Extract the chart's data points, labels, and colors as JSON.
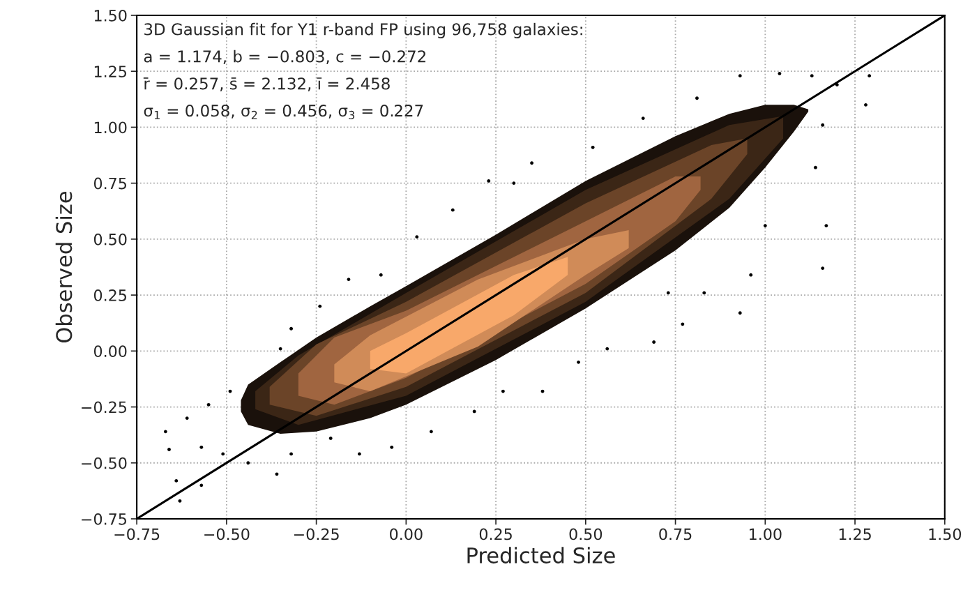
{
  "chart_data": {
    "type": "scatter",
    "xlabel": "Predicted Size",
    "ylabel": "Observed Size",
    "xlim": [
      -0.75,
      1.5
    ],
    "ylim": [
      -0.75,
      1.5
    ],
    "xticks": [
      {
        "value": -0.75,
        "label": "−0.75"
      },
      {
        "value": -0.5,
        "label": "−0.50"
      },
      {
        "value": -0.25,
        "label": "−0.25"
      },
      {
        "value": 0,
        "label": "0.00"
      },
      {
        "value": 0.25,
        "label": "0.25"
      },
      {
        "value": 0.5,
        "label": "0.50"
      },
      {
        "value": 0.75,
        "label": "0.75"
      },
      {
        "value": 1.0,
        "label": "1.00"
      },
      {
        "value": 1.25,
        "label": "1.25"
      },
      {
        "value": 1.5,
        "label": "1.50"
      }
    ],
    "yticks": [
      {
        "value": -0.75,
        "label": "−0.75"
      },
      {
        "value": -0.5,
        "label": "−0.50"
      },
      {
        "value": -0.25,
        "label": "−0.25"
      },
      {
        "value": 0,
        "label": "0.00"
      },
      {
        "value": 0.25,
        "label": "0.25"
      },
      {
        "value": 0.5,
        "label": "0.50"
      },
      {
        "value": 0.75,
        "label": "0.75"
      },
      {
        "value": 1.0,
        "label": "1.00"
      },
      {
        "value": 1.25,
        "label": "1.25"
      },
      {
        "value": 1.5,
        "label": "1.50"
      }
    ],
    "grid": true,
    "legend": false,
    "annotations": [
      "3D Gaussian fit for Y1 r-band FP using 96,758 galaxies:",
      "a = 1.174, b = −0.803, c = −0.272",
      "r̄ = 0.257, s̄ = 2.132, ī = 2.458",
      "σ$_{1}$ = 0.058, σ$_{2}$ = 0.456, σ$_{3}$ = 0.227"
    ],
    "series": [
      {
        "color": "#000000",
        "marker": "circle",
        "x": [
          -0.67,
          -0.64,
          -0.63,
          -0.57,
          -0.51,
          -0.55,
          -0.49,
          -0.35,
          -0.32,
          -0.24,
          -0.16,
          -0.07,
          0.03,
          0.13,
          0.23,
          0.3,
          0.35,
          0.52,
          0.66,
          0.81,
          0.93,
          1.04,
          1.13,
          1.2,
          1.29,
          1.28,
          1.16,
          1.14,
          1.17,
          1.16,
          1.0,
          0.96,
          0.93,
          0.83,
          0.77,
          0.73,
          0.69,
          0.56,
          0.48,
          0.38,
          0.27,
          0.19,
          0.07,
          -0.04,
          -0.13,
          -0.21,
          -0.32,
          -0.36,
          -0.44,
          -0.57,
          -0.61,
          -0.66
        ],
        "values": [
          -0.36,
          -0.58,
          -0.67,
          -0.6,
          -0.46,
          -0.24,
          -0.18,
          0.01,
          0.1,
          0.2,
          0.32,
          0.34,
          0.51,
          0.63,
          0.76,
          0.75,
          0.84,
          0.91,
          1.04,
          1.13,
          1.23,
          1.24,
          1.23,
          1.19,
          1.23,
          1.1,
          1.01,
          0.82,
          0.56,
          0.37,
          0.56,
          0.34,
          0.17,
          0.26,
          0.12,
          0.26,
          0.04,
          0.01,
          -0.05,
          -0.18,
          -0.18,
          -0.27,
          -0.36,
          -0.43,
          -0.46,
          -0.39,
          -0.46,
          -0.55,
          -0.5,
          -0.43,
          -0.3,
          -0.44
        ]
      },
      {
        "type": "area",
        "color": "#1a110b",
        "x": [
          -0.46,
          -0.44,
          -0.35,
          -0.25,
          -0.1,
          0.0,
          0.25,
          0.5,
          0.75,
          0.9,
          1.0,
          1.08,
          1.12,
          1.12,
          1.08,
          1.0,
          0.9,
          0.75,
          0.5,
          0.25,
          0.0,
          -0.1,
          -0.25,
          -0.35,
          -0.44,
          -0.46
        ],
        "values": [
          -0.22,
          -0.15,
          -0.05,
          0.06,
          0.2,
          0.29,
          0.52,
          0.76,
          0.96,
          1.06,
          1.1,
          1.1,
          1.08,
          1.07,
          0.98,
          0.82,
          0.64,
          0.45,
          0.19,
          -0.04,
          -0.24,
          -0.3,
          -0.36,
          -0.37,
          -0.33,
          -0.27
        ]
      },
      {
        "type": "area",
        "color": "#3b2616",
        "x": [
          -0.42,
          -0.3,
          0.0,
          0.5,
          0.9,
          1.05,
          1.05,
          0.9,
          0.5,
          0.0,
          -0.3,
          -0.42
        ],
        "values": [
          -0.18,
          -0.02,
          0.26,
          0.72,
          1.01,
          1.05,
          0.95,
          0.68,
          0.22,
          -0.2,
          -0.33,
          -0.26
        ]
      },
      {
        "type": "area",
        "color": "#6b4428",
        "x": [
          -0.38,
          -0.25,
          0.0,
          0.5,
          0.85,
          0.95,
          0.95,
          0.85,
          0.5,
          0.0,
          -0.25,
          -0.38
        ],
        "values": [
          -0.16,
          0.03,
          0.22,
          0.66,
          0.92,
          0.95,
          0.88,
          0.68,
          0.26,
          -0.16,
          -0.29,
          -0.24
        ]
      },
      {
        "type": "area",
        "color": "#a06540",
        "x": [
          -0.3,
          -0.2,
          0.0,
          0.5,
          0.75,
          0.82,
          0.82,
          0.75,
          0.5,
          0.0,
          -0.2,
          -0.3
        ],
        "values": [
          -0.1,
          0.06,
          0.18,
          0.58,
          0.78,
          0.78,
          0.72,
          0.58,
          0.3,
          -0.12,
          -0.24,
          -0.2
        ]
      },
      {
        "type": "area",
        "color": "#d08b58",
        "x": [
          -0.2,
          -0.1,
          0.2,
          0.5,
          0.62,
          0.62,
          0.5,
          0.2,
          -0.1,
          -0.2
        ],
        "values": [
          -0.06,
          0.07,
          0.32,
          0.5,
          0.54,
          0.46,
          0.34,
          0.02,
          -0.18,
          -0.14
        ]
      },
      {
        "type": "area",
        "color": "#f8a86a",
        "x": [
          -0.1,
          0.0,
          0.3,
          0.45,
          0.45,
          0.3,
          0.0,
          -0.1
        ],
        "values": [
          0.0,
          0.08,
          0.34,
          0.42,
          0.34,
          0.16,
          -0.1,
          -0.08
        ]
      },
      {
        "type": "line",
        "color": "#000000",
        "x": [
          -0.75,
          1.5
        ],
        "values": [
          -0.75,
          1.5
        ]
      }
    ]
  }
}
